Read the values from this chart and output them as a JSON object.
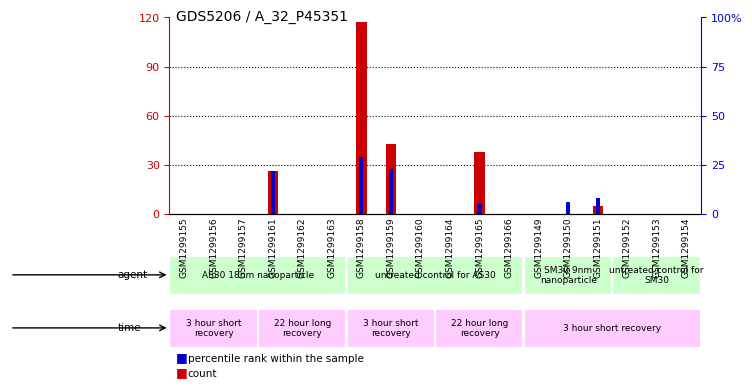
{
  "title": "GDS5206 / A_32_P45351",
  "samples": [
    "GSM1299155",
    "GSM1299156",
    "GSM1299157",
    "GSM1299161",
    "GSM1299162",
    "GSM1299163",
    "GSM1299158",
    "GSM1299159",
    "GSM1299160",
    "GSM1299164",
    "GSM1299165",
    "GSM1299166",
    "GSM1299149",
    "GSM1299150",
    "GSM1299151",
    "GSM1299152",
    "GSM1299153",
    "GSM1299154"
  ],
  "count": [
    0,
    0,
    0,
    26,
    0,
    0,
    117,
    43,
    0,
    0,
    38,
    0,
    0,
    0,
    5,
    0,
    0,
    0
  ],
  "percentile": [
    0,
    0,
    0,
    22,
    0,
    0,
    29,
    23,
    0,
    0,
    5,
    0,
    0,
    6,
    8,
    0,
    0,
    0
  ],
  "left_ylim": [
    0,
    120
  ],
  "right_ylim": [
    0,
    100
  ],
  "left_yticks": [
    0,
    30,
    60,
    90,
    120
  ],
  "right_yticks": [
    0,
    25,
    50,
    75,
    100
  ],
  "right_yticklabels": [
    "0",
    "25",
    "50",
    "75",
    "100%"
  ],
  "agent_groups": [
    {
      "label": "AS30 18nm nanoparticle",
      "start": 0,
      "end": 6,
      "color": "#ccffcc"
    },
    {
      "label": "untreated control for AS30",
      "start": 6,
      "end": 12,
      "color": "#ccffcc"
    },
    {
      "label": "SM30 9nm\nnanoparticle",
      "start": 12,
      "end": 15,
      "color": "#ccffcc"
    },
    {
      "label": "untreated control for\nSM30",
      "start": 15,
      "end": 18,
      "color": "#ccffcc"
    }
  ],
  "time_groups": [
    {
      "label": "3 hour short\nrecovery",
      "start": 0,
      "end": 3,
      "color": "#ffccff"
    },
    {
      "label": "22 hour long\nrecovery",
      "start": 3,
      "end": 6,
      "color": "#ffccff"
    },
    {
      "label": "3 hour short\nrecovery",
      "start": 6,
      "end": 9,
      "color": "#ffccff"
    },
    {
      "label": "22 hour long\nrecovery",
      "start": 9,
      "end": 12,
      "color": "#ffccff"
    },
    {
      "label": "3 hour short recovery",
      "start": 12,
      "end": 18,
      "color": "#ffccff"
    }
  ],
  "bar_color_red": "#cc0000",
  "bar_color_blue": "#0000cc",
  "bg_color": "#e8e8e8",
  "grid_color": "#000000",
  "left_label_color": "#cc0000",
  "right_label_color": "#0000cc",
  "legend_items": [
    {
      "label": "count",
      "color": "#cc0000"
    },
    {
      "label": "percentile rank within the sample",
      "color": "#0000cc"
    }
  ]
}
